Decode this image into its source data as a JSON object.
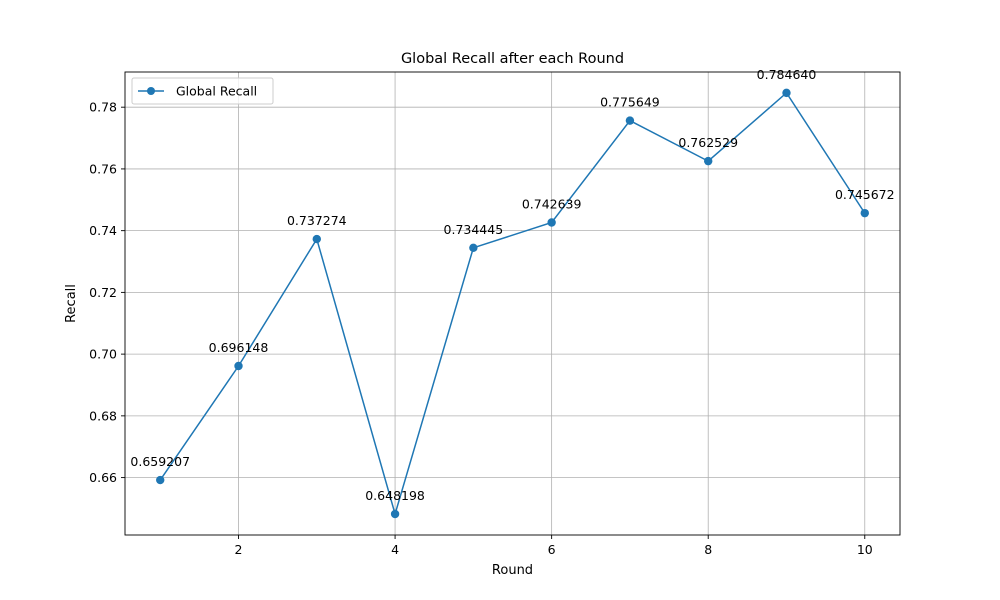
{
  "chart_data": {
    "type": "line",
    "title": "Global Recall after each Round",
    "xlabel": "Round",
    "ylabel": "Recall",
    "x": [
      1,
      2,
      3,
      4,
      5,
      6,
      7,
      8,
      9,
      10
    ],
    "series": [
      {
        "name": "Global Recall",
        "color": "#1f77b4",
        "marker": "circle",
        "values": [
          0.659207,
          0.696148,
          0.737274,
          0.648198,
          0.734445,
          0.742639,
          0.775649,
          0.762529,
          0.78464,
          0.745672
        ],
        "labels": [
          "0.659207",
          "0.696148",
          "0.737274",
          "0.648198",
          "0.734445",
          "0.742639",
          "0.775649",
          "0.762529",
          "0.784640",
          "0.745672"
        ]
      }
    ],
    "xlim": [
      0.55,
      10.45
    ],
    "ylim": [
      0.6414,
      0.7914
    ],
    "xticks": [
      2,
      4,
      6,
      8,
      10
    ],
    "xtick_labels": [
      "2",
      "4",
      "6",
      "8",
      "10"
    ],
    "yticks": [
      0.66,
      0.68,
      0.7,
      0.72,
      0.74,
      0.76,
      0.78
    ],
    "ytick_labels": [
      "0.66",
      "0.68",
      "0.70",
      "0.72",
      "0.74",
      "0.76",
      "0.78"
    ],
    "grid": true,
    "legend_position": "top-left"
  }
}
